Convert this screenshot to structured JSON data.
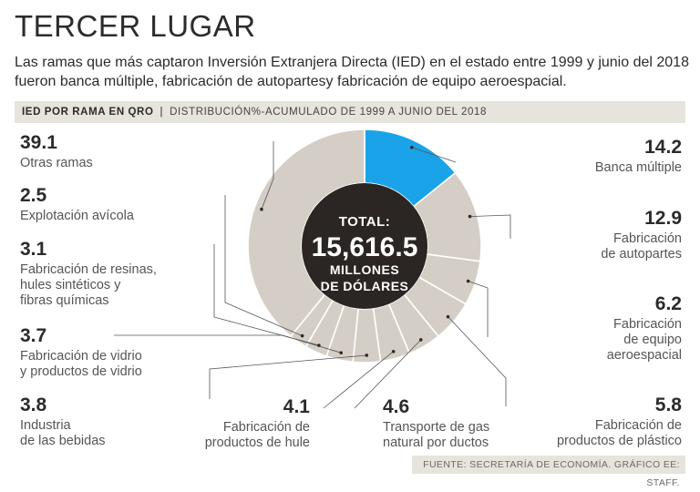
{
  "title": "TERCER LUGAR",
  "subtitle": "Las ramas que más captaron Inversión Extranjera Directa (IED) en el estado entre 1999 y junio del 2018 fueron banca múltiple, fabricación de autopartesy fabricación de equipo aeroespacial.",
  "header": {
    "title": "IED POR RAMA EN QRO",
    "separator": "|",
    "subtitle": "DISTRIBUCIÓN%-ACUMULADO DE 1999 A JUNIO DEL 2018"
  },
  "center": {
    "line1": "TOTAL:",
    "line2": "15,616.5",
    "line3": "MILLONES",
    "line4": "DE DÓLARES"
  },
  "source": "FUENTE: SECRETARÍA DE ECONOMÍA. GRÁFICO EE: STAFF.",
  "colors": {
    "ring": "#d4cec6",
    "highlight": "#1aa3e8",
    "center": "#2b2623",
    "divider": "#ffffff",
    "leader": "#555555"
  },
  "chart_data": {
    "type": "pie",
    "unit": "%",
    "total": 15616.5,
    "total_unit": "MILLONES DE DÓLARES",
    "slices": [
      {
        "value": 14.2,
        "value_label": "14.2",
        "label_lines": [
          "Banca múltiple"
        ],
        "highlight": true
      },
      {
        "value": 12.9,
        "value_label": "12.9",
        "label_lines": [
          "Fabricación",
          "de autopartes"
        ],
        "highlight": false
      },
      {
        "value": 6.2,
        "value_label": "6.2",
        "label_lines": [
          "Fabricación",
          "de equipo",
          "aeroespacial"
        ],
        "highlight": false
      },
      {
        "value": 5.8,
        "value_label": "5.8",
        "label_lines": [
          "Fabricación de",
          "productos de plástico"
        ],
        "highlight": false
      },
      {
        "value": 4.6,
        "value_label": "4.6",
        "label_lines": [
          "Transporte de gas",
          "natural por ductos"
        ],
        "highlight": false
      },
      {
        "value": 4.1,
        "value_label": "4.1",
        "label_lines": [
          "Fabricación de",
          "productos de hule"
        ],
        "highlight": false
      },
      {
        "value": 3.8,
        "value_label": "3.8",
        "label_lines": [
          "Industria",
          "de las bebidas"
        ],
        "highlight": false
      },
      {
        "value": 3.7,
        "value_label": "3.7",
        "label_lines": [
          "Fabricación de vidrio",
          "y productos de vidrio"
        ],
        "highlight": false
      },
      {
        "value": 3.1,
        "value_label": "3.1",
        "label_lines": [
          "Fabricación de resinas,",
          "hules sintéticos y",
          "fibras químicas"
        ],
        "highlight": false
      },
      {
        "value": 2.5,
        "value_label": "2.5",
        "label_lines": [
          "Explotación avícola"
        ],
        "highlight": false
      },
      {
        "value": 39.1,
        "value_label": "39.1",
        "label_lines": [
          "Otras ramas"
        ],
        "highlight": false
      }
    ]
  }
}
